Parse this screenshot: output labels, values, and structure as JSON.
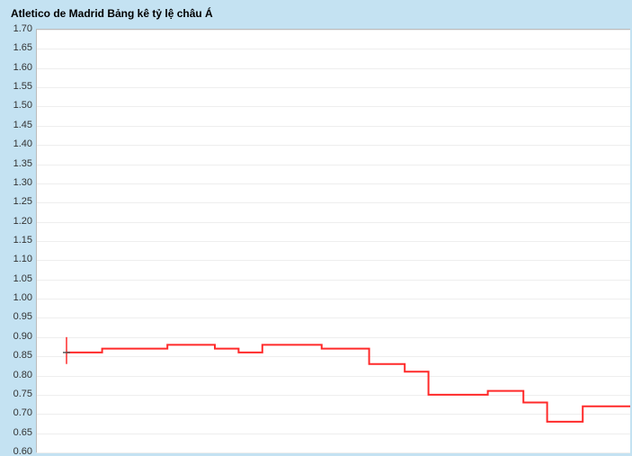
{
  "title": "Atletico de Madrid Bảng kê tỷ lệ châu Á",
  "chart": {
    "type": "line",
    "background_color": "#c4e2f2",
    "plot_background": "#ffffff",
    "grid_color": "#eeeeee",
    "axis_color": "#bbbbbb",
    "line_color": "#ff2a2a",
    "line_width": 2,
    "title_fontsize": 12,
    "label_fontsize": 11,
    "label_color": "#333333",
    "ylim": [
      0.6,
      1.7
    ],
    "ytick_step": 0.05,
    "yticks": [
      "0.60",
      "0.65",
      "0.70",
      "0.75",
      "0.80",
      "0.85",
      "0.90",
      "0.95",
      "1.00",
      "1.05",
      "1.10",
      "1.15",
      "1.20",
      "1.25",
      "1.30",
      "1.35",
      "1.40",
      "1.45",
      "1.50",
      "1.55",
      "1.60",
      "1.65",
      "1.70"
    ],
    "x_range": [
      0,
      100
    ],
    "series": [
      {
        "x": 5,
        "y": 0.86
      },
      {
        "x": 11,
        "y": 0.86
      },
      {
        "x": 11,
        "y": 0.87
      },
      {
        "x": 22,
        "y": 0.87
      },
      {
        "x": 22,
        "y": 0.88
      },
      {
        "x": 30,
        "y": 0.88
      },
      {
        "x": 30,
        "y": 0.87
      },
      {
        "x": 34,
        "y": 0.87
      },
      {
        "x": 34,
        "y": 0.86
      },
      {
        "x": 38,
        "y": 0.86
      },
      {
        "x": 38,
        "y": 0.88
      },
      {
        "x": 48,
        "y": 0.88
      },
      {
        "x": 48,
        "y": 0.87
      },
      {
        "x": 56,
        "y": 0.87
      },
      {
        "x": 56,
        "y": 0.83
      },
      {
        "x": 62,
        "y": 0.83
      },
      {
        "x": 62,
        "y": 0.81
      },
      {
        "x": 66,
        "y": 0.81
      },
      {
        "x": 66,
        "y": 0.75
      },
      {
        "x": 76,
        "y": 0.75
      },
      {
        "x": 76,
        "y": 0.76
      },
      {
        "x": 82,
        "y": 0.76
      },
      {
        "x": 82,
        "y": 0.73
      },
      {
        "x": 86,
        "y": 0.73
      },
      {
        "x": 86,
        "y": 0.68
      },
      {
        "x": 92,
        "y": 0.68
      },
      {
        "x": 92,
        "y": 0.72
      },
      {
        "x": 100,
        "y": 0.72
      }
    ],
    "start_marker": {
      "x": 5,
      "low": 0.83,
      "high": 0.9,
      "open": 0.86,
      "close": 0.86,
      "color": "#ff2a2a",
      "tick_color": "#555555"
    }
  }
}
